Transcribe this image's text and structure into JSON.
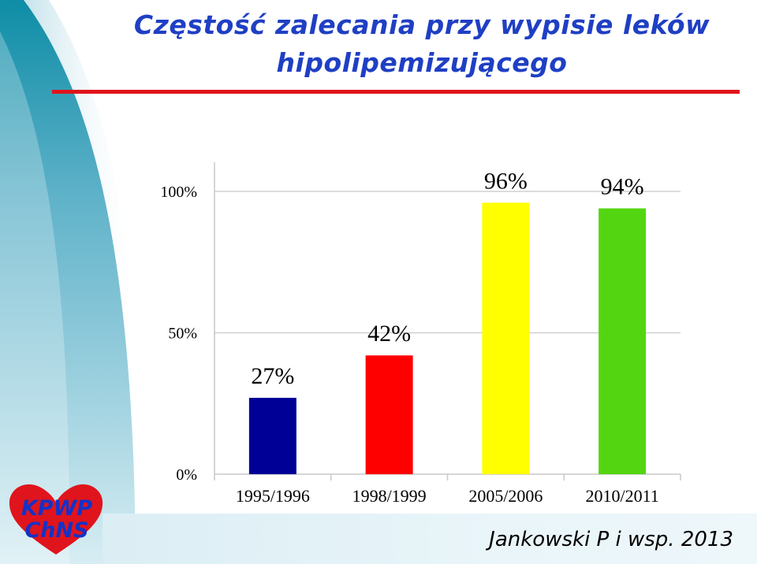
{
  "slide": {
    "title_line1": "Częstość zalecania przy wypisie leków",
    "title_line2": "hipolipemizującego",
    "citation": "Jankowski P i wsp. 2013",
    "logo_text": "KPWP\nChNS"
  },
  "colors": {
    "title": "#1f3fc4",
    "underline": "#e0141c",
    "logo_heart": "#e0141c",
    "logo_text": "#1432c8"
  },
  "chart_data": {
    "type": "bar",
    "categories": [
      "1995/1996",
      "1998/1999",
      "2005/2006",
      "2010/2011"
    ],
    "values": [
      27,
      42,
      96,
      94
    ],
    "data_labels": [
      "27%",
      "42%",
      "96%",
      "94%"
    ],
    "bar_colors": [
      "#000096",
      "#ff0000",
      "#ffff00",
      "#53d611"
    ],
    "y_ticks": [
      0,
      50,
      100
    ],
    "y_tick_labels": [
      "0%",
      "50%",
      "100%"
    ],
    "ylim": [
      0,
      100
    ],
    "grid": true,
    "title": "",
    "xlabel": "",
    "ylabel": ""
  }
}
